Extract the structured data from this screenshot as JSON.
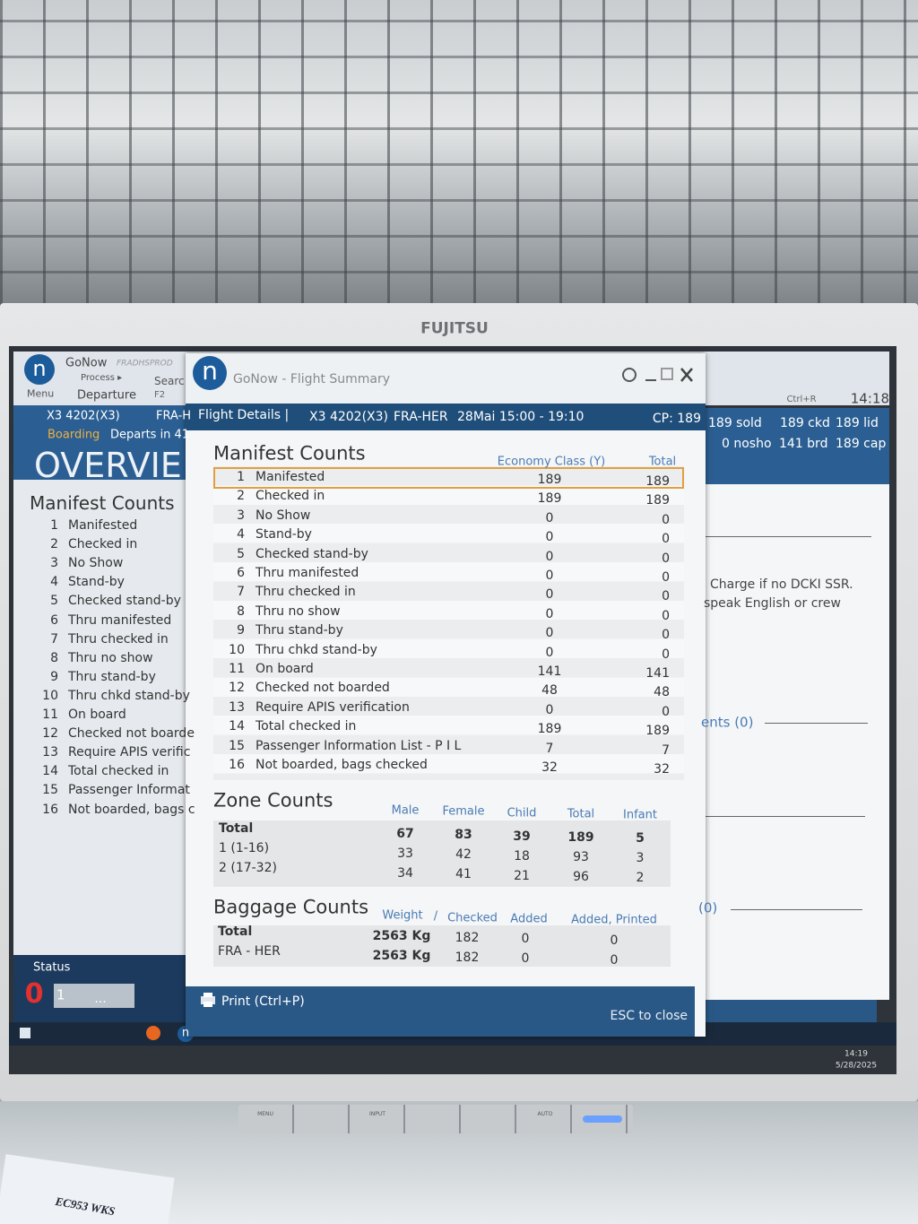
{
  "monitor": {
    "brand": "FUJITSU",
    "buttons": [
      "MENU",
      "INPUT",
      "AUTO"
    ]
  },
  "desk_label": "EC953 WKS",
  "app": {
    "logo": "n",
    "name": "GoNow",
    "environment": "FRADHSPROD",
    "menu": "Menu",
    "process": "Process ▸",
    "search": "Searc",
    "departure": "Departure",
    "shortcut": "F2",
    "flight": "X3 4202(X3)",
    "route": "FRA-H",
    "state": "Boarding",
    "departs": "Departs in 41",
    "view": "OVERVIE",
    "section": "Manifest Counts",
    "rows": [
      [
        1,
        "Manifested"
      ],
      [
        2,
        "Checked in"
      ],
      [
        3,
        "No Show"
      ],
      [
        4,
        "Stand-by"
      ],
      [
        5,
        "Checked stand-by"
      ],
      [
        6,
        "Thru manifested"
      ],
      [
        7,
        "Thru checked in"
      ],
      [
        8,
        "Thru no show"
      ],
      [
        9,
        "Thru stand-by"
      ],
      [
        10,
        "Thru chkd stand-by"
      ],
      [
        11,
        "On board"
      ],
      [
        12,
        "Checked not boarde"
      ],
      [
        13,
        "Require APIS verific"
      ],
      [
        14,
        "Total checked in"
      ],
      [
        15,
        "Passenger Informat"
      ],
      [
        16,
        "Not boarded, bags c"
      ]
    ],
    "status": "Status",
    "status_count": "0",
    "status_field": "1",
    "more": "...",
    "refresh": "Ctrl+R",
    "time": "14:18",
    "stats": [
      "189 sold",
      "189 ckd",
      "189 lid",
      "0 nosho",
      "141 brd",
      "189 cap"
    ],
    "notes": [
      "Charge if no DCKI SSR.",
      "speak English or crew",
      "ents (0)",
      "(0)"
    ]
  },
  "taskbar": {
    "time": "14:19",
    "date": "5/28/2025"
  },
  "dialog": {
    "title": "GoNow - Flight Summary",
    "tab": "Flight Details |",
    "flight": "X3 4202(X3)",
    "route": "FRA-HER",
    "schedule": "28Mai 15:00 - 19:10",
    "capacity": "CP: 189",
    "manifest": {
      "title": "Manifest Counts",
      "columns": [
        "Economy Class (Y)",
        "Total"
      ],
      "rows": [
        [
          1,
          "Manifested",
          189,
          189
        ],
        [
          2,
          "Checked in",
          189,
          189
        ],
        [
          3,
          "No Show",
          0,
          0
        ],
        [
          4,
          "Stand-by",
          0,
          0
        ],
        [
          5,
          "Checked stand-by",
          0,
          0
        ],
        [
          6,
          "Thru manifested",
          0,
          0
        ],
        [
          7,
          "Thru checked in",
          0,
          0
        ],
        [
          8,
          "Thru no show",
          0,
          0
        ],
        [
          9,
          "Thru stand-by",
          0,
          0
        ],
        [
          10,
          "Thru chkd stand-by",
          0,
          0
        ],
        [
          11,
          "On board",
          141,
          141
        ],
        [
          12,
          "Checked not boarded",
          48,
          48
        ],
        [
          13,
          "Require APIS verification",
          0,
          0
        ],
        [
          14,
          "Total checked in",
          189,
          189
        ],
        [
          15,
          "Passenger Information List - P I L",
          7,
          7
        ],
        [
          16,
          "Not boarded, bags checked",
          32,
          32
        ]
      ]
    },
    "zones": {
      "title": "Zone Counts",
      "columns": [
        "Male",
        "Female",
        "Child",
        "Total",
        "Infant"
      ],
      "rows": [
        [
          "Total",
          67,
          83,
          39,
          189,
          5
        ],
        [
          "1 (1-16)",
          33,
          42,
          18,
          93,
          3
        ],
        [
          "2 (17-32)",
          34,
          41,
          21,
          96,
          2
        ]
      ]
    },
    "baggage": {
      "title": "Baggage Counts",
      "columns": [
        "Weight",
        "/",
        "Checked",
        "Added",
        "Added, Printed"
      ],
      "rows": [
        [
          "Total",
          "2563 Kg",
          182,
          0,
          0
        ],
        [
          "FRA - HER",
          "2563 Kg",
          182,
          0,
          0
        ]
      ]
    },
    "print": "Print (Ctrl+P)",
    "close": "ESC to close"
  }
}
